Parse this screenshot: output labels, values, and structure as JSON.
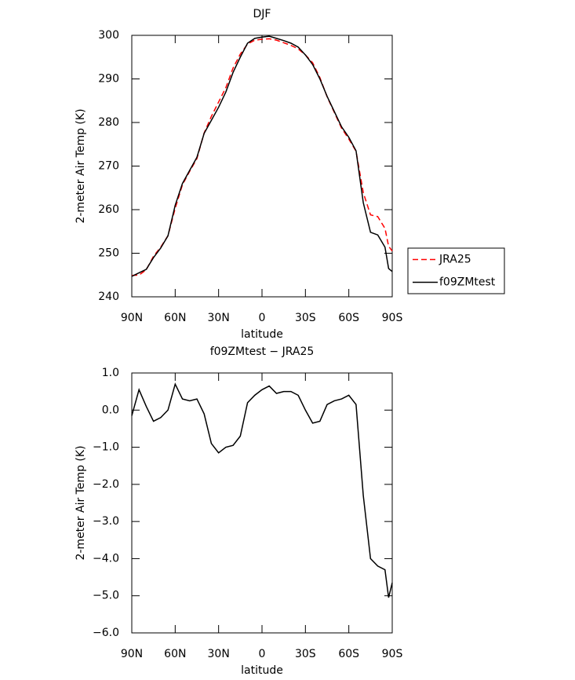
{
  "chart_data": [
    {
      "type": "line",
      "title": "DJF",
      "xlabel": "latitude",
      "ylabel": "2-meter Air Temp (K)",
      "x": [
        90,
        85,
        80,
        75,
        70,
        65,
        60,
        55,
        50,
        45,
        40,
        35,
        30,
        25,
        20,
        15,
        10,
        5,
        0,
        -5,
        -10,
        -15,
        -20,
        -25,
        -30,
        -35,
        -40,
        -45,
        -50,
        -55,
        -60,
        -65,
        -70,
        -75,
        -80,
        -85,
        -87.5,
        -90
      ],
      "series": [
        {
          "name": "JRA25",
          "color": "#ff0000",
          "linestyle": "dashed",
          "values": [
            244.9,
            245.0,
            246.2,
            249.3,
            251.4,
            254.0,
            260.3,
            265.7,
            268.8,
            271.7,
            277.6,
            281.4,
            284.7,
            288.0,
            292.5,
            295.7,
            298.0,
            298.9,
            299.1,
            299.2,
            298.9,
            298.3,
            297.7,
            296.9,
            295.5,
            293.7,
            290.3,
            285.9,
            282.3,
            278.7,
            276.2,
            273.4,
            263.9,
            258.8,
            258.4,
            255.7,
            251.6,
            250.5
          ]
        },
        {
          "name": "f09ZMtest",
          "color": "#000000",
          "linestyle": "solid",
          "values": [
            244.7,
            245.5,
            246.3,
            249.0,
            251.2,
            254.0,
            261.0,
            266.0,
            269.0,
            272.0,
            277.5,
            280.5,
            283.5,
            287.0,
            291.5,
            295.0,
            298.2,
            299.3,
            299.6,
            299.8,
            299.3,
            298.8,
            298.2,
            297.3,
            295.5,
            293.3,
            290.0,
            286.0,
            282.5,
            279.0,
            276.6,
            273.5,
            261.6,
            254.8,
            254.2,
            251.4,
            246.5,
            245.8
          ]
        }
      ],
      "xlim": [
        90,
        -90
      ],
      "xticks": [
        {
          "value": 90,
          "label": "90N"
        },
        {
          "value": 60,
          "label": "60N"
        },
        {
          "value": 30,
          "label": "30N"
        },
        0,
        {
          "value": -30,
          "label": "30S"
        },
        {
          "value": -60,
          "label": "60S"
        },
        {
          "value": -90,
          "label": "90S"
        }
      ],
      "ylim": [
        240,
        300
      ],
      "yticks": [
        240,
        250,
        260,
        270,
        280,
        290,
        300
      ],
      "legend": "right"
    },
    {
      "type": "line",
      "title": "f09ZMtest − JRA25",
      "xlabel": "latitude",
      "ylabel": "2-meter Air Temp (K)",
      "x": [
        90,
        85,
        80,
        75,
        70,
        65,
        60,
        55,
        50,
        45,
        40,
        35,
        30,
        25,
        20,
        15,
        10,
        5,
        0,
        -5,
        -10,
        -15,
        -20,
        -25,
        -30,
        -35,
        -40,
        -45,
        -50,
        -55,
        -60,
        -65,
        -70,
        -75,
        -80,
        -85,
        -87.5,
        -90
      ],
      "color": "#000000",
      "values": [
        -0.15,
        0.55,
        0.1,
        -0.3,
        -0.2,
        0.0,
        0.7,
        0.3,
        0.25,
        0.3,
        -0.1,
        -0.9,
        -1.15,
        -1.0,
        -0.95,
        -0.7,
        0.2,
        0.4,
        0.55,
        0.65,
        0.45,
        0.5,
        0.5,
        0.4,
        0.0,
        -0.35,
        -0.3,
        0.15,
        0.25,
        0.3,
        0.4,
        0.15,
        -2.3,
        -4.0,
        -4.2,
        -4.3,
        -5.05,
        -4.65
      ],
      "xlim": [
        90,
        -90
      ],
      "xticks": [
        {
          "value": 90,
          "label": "90N"
        },
        {
          "value": 60,
          "label": "60N"
        },
        {
          "value": 30,
          "label": "30N"
        },
        0,
        {
          "value": -30,
          "label": "30S"
        },
        {
          "value": -60,
          "label": "60S"
        },
        {
          "value": -90,
          "label": "90S"
        }
      ],
      "ylim": [
        -6,
        1
      ],
      "yticks": [
        {
          "value": -6,
          "label": "−6.0"
        },
        {
          "value": -5,
          "label": "−5.0"
        },
        {
          "value": -4,
          "label": "−4.0"
        },
        {
          "value": -3,
          "label": "−3.0"
        },
        {
          "value": -2,
          "label": "−2.0"
        },
        {
          "value": -1,
          "label": "−1.0"
        },
        {
          "value": 0,
          "label": "0.0"
        },
        {
          "value": 1,
          "label": "1.0"
        }
      ]
    }
  ]
}
